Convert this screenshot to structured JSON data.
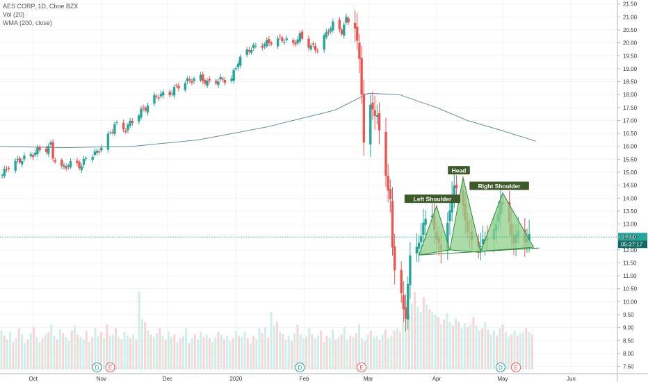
{
  "legend": {
    "symbol_line": "AES CORP, 1D, Cboe BZX",
    "volume_line": "Vol (20)",
    "ma_line": "WMA (200, close)"
  },
  "price_badge": {
    "price": "12.50",
    "countdown": "05:37:17"
  },
  "pattern_labels": {
    "left": "Left Shoulder",
    "head": "Head",
    "right": "Right Shoulder"
  },
  "event_markers": [
    {
      "symbol": "D",
      "kind": "dividend",
      "date": "2019-10-30"
    },
    {
      "symbol": "E",
      "kind": "earnings",
      "date": "2019-11-05"
    },
    {
      "symbol": "D",
      "kind": "dividend",
      "date": "2020-01-30"
    },
    {
      "symbol": "E",
      "kind": "earnings",
      "date": "2020-02-27"
    },
    {
      "symbol": "D",
      "kind": "dividend",
      "date": "2020-04-30"
    },
    {
      "symbol": "E",
      "kind": "earnings",
      "date": "2020-05-07"
    }
  ],
  "colors": {
    "up": "#26a69a",
    "down": "#ef5350",
    "up_volume": "#cfeee9",
    "down_volume": "#f9d4d3",
    "wma": "#5f8f99",
    "pattern_fill": "#8fd08a",
    "pattern_stroke": "#2f8a3a",
    "label_bg": "#3d5a2a",
    "price_line": "#26a69a",
    "countdown_bg": "#0f6b63",
    "marker_d": "#26a69a",
    "marker_e": "#ef5350"
  },
  "chart_data": {
    "type": "candlestick",
    "title": "AES CORP, 1D, Cboe BZX",
    "indicators": [
      "Vol (20)",
      "WMA (200, close)"
    ],
    "y_axis": {
      "ticks": [
        "7.50",
        "8.00",
        "8.50",
        "9.00",
        "9.50",
        "10.00",
        "10.50",
        "11.00",
        "11.50",
        "12.00",
        "12.50",
        "13.00",
        "13.50",
        "14.00",
        "14.50",
        "15.00",
        "15.50",
        "16.00",
        "16.50",
        "17.00",
        "17.50",
        "18.00",
        "18.50",
        "19.00",
        "19.50",
        "20.00",
        "20.50",
        "21.00",
        "21.50"
      ],
      "range": [
        7.3,
        21.6
      ]
    },
    "x_axis": {
      "labels": [
        "Oct",
        "Nov",
        "Dec",
        "2020",
        "Feb",
        "Mar",
        "Apr",
        "May",
        "Jun"
      ],
      "label_dates": [
        "2019-10-01",
        "2019-11-01",
        "2019-12-01",
        "2020-01-01",
        "2020-02-01",
        "2020-03-01",
        "2020-04-01",
        "2020-05-01",
        "2020-06-01"
      ],
      "range": [
        "2019-09-16",
        "2020-06-22"
      ]
    },
    "last_price": 12.5,
    "close_series": [
      [
        "2019-09-17",
        14.9
      ],
      [
        "2019-09-20",
        15.25
      ],
      [
        "2019-09-26",
        15.5
      ],
      [
        "2019-10-01",
        15.7
      ],
      [
        "2019-10-03",
        15.85
      ],
      [
        "2019-10-07",
        15.9
      ],
      [
        "2019-10-09",
        16.05
      ],
      [
        "2019-10-10",
        15.6
      ],
      [
        "2019-10-14",
        15.15
      ],
      [
        "2019-10-17",
        15.3
      ],
      [
        "2019-10-21",
        15.35
      ],
      [
        "2019-10-23",
        15.2
      ],
      [
        "2019-10-25",
        15.6
      ],
      [
        "2019-10-30",
        15.75
      ],
      [
        "2019-11-01",
        16.0
      ],
      [
        "2019-11-05",
        16.5
      ],
      [
        "2019-11-07",
        16.85
      ],
      [
        "2019-11-12",
        16.65
      ],
      [
        "2019-11-14",
        16.9
      ],
      [
        "2019-11-19",
        17.35
      ],
      [
        "2019-11-21",
        17.5
      ],
      [
        "2019-11-26",
        17.95
      ],
      [
        "2019-12-02",
        18.05
      ],
      [
        "2019-12-06",
        18.35
      ],
      [
        "2019-12-11",
        18.55
      ],
      [
        "2019-12-16",
        18.65
      ],
      [
        "2019-12-19",
        18.45
      ],
      [
        "2019-12-24",
        18.55
      ],
      [
        "2019-12-30",
        18.6
      ],
      [
        "2020-01-02",
        19.3
      ],
      [
        "2020-01-07",
        19.75
      ],
      [
        "2020-01-10",
        19.85
      ],
      [
        "2020-01-14",
        19.95
      ],
      [
        "2020-01-17",
        20.05
      ],
      [
        "2020-01-22",
        20.15
      ],
      [
        "2020-01-27",
        19.95
      ],
      [
        "2020-01-30",
        20.25
      ],
      [
        "2020-02-04",
        19.85
      ],
      [
        "2020-02-07",
        19.75
      ],
      [
        "2020-02-12",
        20.5
      ],
      [
        "2020-02-14",
        20.7
      ],
      [
        "2020-02-18",
        20.45
      ],
      [
        "2020-02-20",
        20.9
      ],
      [
        "2020-02-24",
        20.65
      ],
      [
        "2020-02-25",
        20.0
      ],
      [
        "2020-02-26",
        19.3
      ],
      [
        "2020-02-27",
        18.1
      ],
      [
        "2020-02-28",
        16.2
      ],
      [
        "2020-03-02",
        17.5
      ],
      [
        "2020-03-05",
        17.2
      ],
      [
        "2020-03-06",
        16.5
      ],
      [
        "2020-03-09",
        14.9
      ],
      [
        "2020-03-11",
        13.9
      ],
      [
        "2020-03-12",
        12.0
      ],
      [
        "2020-03-13",
        11.3
      ],
      [
        "2020-03-16",
        10.4
      ],
      [
        "2020-03-17",
        9.6
      ],
      [
        "2020-03-18",
        9.3
      ],
      [
        "2020-03-19",
        10.8
      ],
      [
        "2020-03-20",
        11.8
      ],
      [
        "2020-03-23",
        12.0
      ],
      [
        "2020-03-24",
        12.3
      ],
      [
        "2020-03-26",
        13.0
      ],
      [
        "2020-03-30",
        13.4
      ],
      [
        "2020-04-01",
        12.3
      ],
      [
        "2020-04-03",
        12.1
      ],
      [
        "2020-04-07",
        13.4
      ],
      [
        "2020-04-08",
        14.1
      ],
      [
        "2020-04-09",
        14.6
      ],
      [
        "2020-04-13",
        13.6
      ],
      [
        "2020-04-15",
        12.8
      ],
      [
        "2020-04-17",
        12.3
      ],
      [
        "2020-04-21",
        12.2
      ],
      [
        "2020-04-23",
        12.4
      ],
      [
        "2020-04-28",
        12.9
      ],
      [
        "2020-04-30",
        14.0
      ],
      [
        "2020-05-01",
        13.7
      ],
      [
        "2020-05-04",
        13.0
      ],
      [
        "2020-05-06",
        12.3
      ],
      [
        "2020-05-08",
        12.7
      ],
      [
        "2020-05-11",
        12.4
      ],
      [
        "2020-05-13",
        12.5
      ]
    ],
    "wma_series": [
      [
        "2019-09-16",
        16.0
      ],
      [
        "2019-10-15",
        15.95
      ],
      [
        "2019-11-15",
        16.0
      ],
      [
        "2019-12-15",
        16.25
      ],
      [
        "2020-01-15",
        16.75
      ],
      [
        "2020-02-15",
        17.4
      ],
      [
        "2020-03-01",
        18.05
      ],
      [
        "2020-03-15",
        18.0
      ],
      [
        "2020-04-01",
        17.5
      ],
      [
        "2020-04-15",
        17.0
      ],
      [
        "2020-05-01",
        16.6
      ],
      [
        "2020-05-16",
        16.2
      ]
    ],
    "volume_series": {
      "notes": "daily volume bars; relative heights only (no volume scale printed)",
      "values": [
        0.31,
        0.27,
        0.24,
        0.3,
        0.22,
        0.25,
        0.33,
        0.28,
        0.21,
        0.24,
        0.29,
        0.34,
        0.26,
        0.22,
        0.25,
        0.28,
        0.3,
        0.36,
        0.27,
        0.24,
        0.32,
        0.29,
        0.26,
        0.23,
        0.31,
        0.35,
        0.28,
        0.26,
        0.24,
        0.31,
        0.22,
        0.26,
        0.33,
        0.27,
        0.3,
        0.25,
        0.36,
        0.27,
        0.28,
        0.33,
        0.26,
        0.24,
        0.3,
        0.27,
        0.25,
        0.28,
        0.24,
        0.62,
        0.4,
        0.38,
        0.31,
        0.28,
        0.26,
        0.29,
        0.33,
        0.27,
        0.24,
        0.3,
        0.26,
        0.28,
        0.22,
        0.25,
        0.27,
        0.33,
        0.21,
        0.25,
        0.28,
        0.24,
        0.3,
        0.26,
        0.28,
        0.25,
        0.22,
        0.26,
        0.3,
        0.28,
        0.24,
        0.27,
        0.23,
        0.25,
        0.31,
        0.27,
        0.26,
        0.3,
        0.25,
        0.21,
        0.27,
        0.24,
        0.33,
        0.29,
        0.34,
        0.26,
        0.46,
        0.35,
        0.38,
        0.3,
        0.28,
        0.24,
        0.27,
        0.23,
        0.29,
        0.36,
        0.28,
        0.25,
        0.26,
        0.33,
        0.28,
        0.25,
        0.27,
        0.31,
        0.22,
        0.27,
        0.25,
        0.32,
        0.24,
        0.26,
        0.28,
        0.34,
        0.24,
        0.27,
        0.26,
        0.29,
        0.36,
        0.25,
        0.23,
        0.28,
        0.31,
        0.26,
        0.27,
        0.24,
        0.28,
        0.32,
        0.25,
        0.27,
        0.31,
        0.33,
        0.3,
        0.38,
        0.55,
        0.44,
        0.53,
        0.62,
        0.5,
        0.46,
        0.58,
        0.52,
        0.48,
        0.46,
        0.44,
        0.42,
        0.36,
        0.4,
        0.45,
        0.38,
        0.35,
        0.41,
        0.38,
        0.33,
        0.37,
        0.34,
        0.36,
        0.42,
        0.35,
        0.31,
        0.33,
        0.38,
        0.32,
        0.28,
        0.31,
        0.27,
        0.33,
        0.36,
        0.3,
        0.26,
        0.28,
        0.31,
        0.27,
        0.29,
        0.3,
        0.33,
        0.3,
        0.28
      ]
    },
    "pattern": {
      "type": "head-and-shoulders",
      "neckline": [
        [
          "2020-03-24",
          11.8
        ],
        [
          "2020-05-15",
          12.1
        ]
      ],
      "left_shoulder": [
        [
          "2020-03-24",
          11.8
        ],
        [
          "2020-04-01",
          13.7
        ],
        [
          "2020-04-07",
          12.0
        ]
      ],
      "head": [
        [
          "2020-04-07",
          12.0
        ],
        [
          "2020-04-13",
          14.8
        ],
        [
          "2020-04-21",
          11.9
        ]
      ],
      "right_shoulder": [
        [
          "2020-04-21",
          11.95
        ],
        [
          "2020-05-01",
          14.2
        ],
        [
          "2020-05-15",
          12.1
        ]
      ]
    }
  }
}
